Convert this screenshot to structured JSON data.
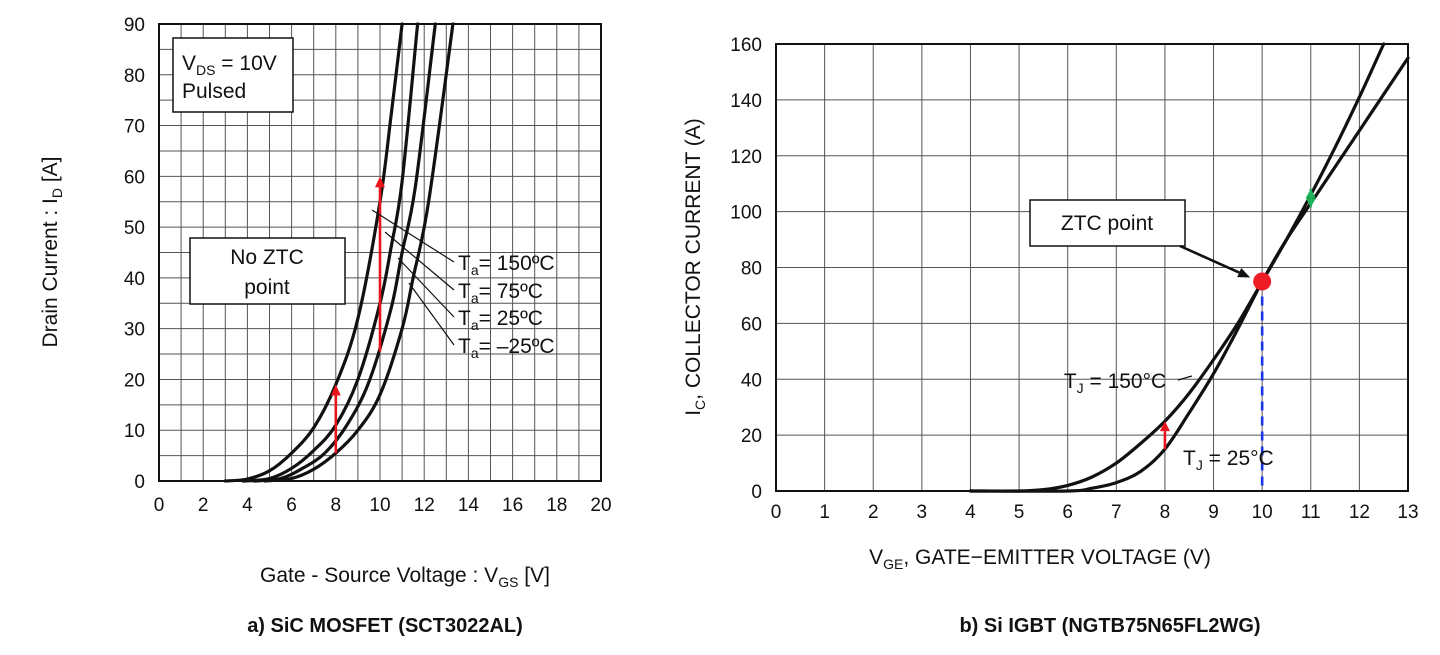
{
  "chart_data": [
    {
      "type": "line",
      "caption": "a) SiC MOSFET (SCT3022AL)",
      "xlabel": {
        "main": "Gate - Source Voltage : V",
        "sub": "GS",
        "unit": " [V]"
      },
      "ylabel": {
        "main": "Drain Current : I",
        "sub": "D",
        "unit": " [A]"
      },
      "xlim": [
        0,
        20
      ],
      "ylim": [
        0,
        90
      ],
      "x_ticks": [
        "0",
        "2",
        "4",
        "6",
        "8",
        "10",
        "12",
        "14",
        "16",
        "18",
        "20"
      ],
      "y_ticks": [
        "0",
        "10",
        "20",
        "30",
        "40",
        "50",
        "60",
        "70",
        "80",
        "90"
      ],
      "grid": true,
      "conditions": {
        "line1_main": "V",
        "line1_sub": "DS",
        "line1_rest": " = 10V",
        "line2": "Pulsed"
      },
      "annotation": {
        "line1": "No ZTC",
        "line2": "point"
      },
      "series": [
        {
          "name": "150ºC",
          "x": [
            3.0,
            4.0,
            5.0,
            6.0,
            7.0,
            8.0,
            9.0,
            10.0,
            10.5,
            11.0
          ],
          "y": [
            0,
            0.4,
            2,
            5.5,
            10.5,
            19,
            32,
            55,
            72,
            90
          ]
        },
        {
          "name": "75ºC",
          "x": [
            3.8,
            5.0,
            6.0,
            7.0,
            8.0,
            9.0,
            10.0,
            10.5,
            11.0,
            11.7
          ],
          "y": [
            0,
            0.5,
            2.5,
            6,
            11,
            20,
            35,
            46,
            59,
            90
          ]
        },
        {
          "name": "25ºC",
          "x": [
            4.3,
            5.5,
            6.5,
            7.5,
            8.5,
            9.5,
            10.5,
            11.0,
            11.6,
            12.5
          ],
          "y": [
            0,
            0.5,
            2.5,
            5.5,
            11,
            19.5,
            34,
            45,
            58,
            90
          ]
        },
        {
          "name": "–25ºC",
          "x": [
            4.8,
            6.0,
            7.0,
            8.0,
            9.0,
            10.0,
            11.0,
            11.5,
            12.2,
            13.3
          ],
          "y": [
            0,
            0.5,
            2.3,
            5.5,
            10,
            17,
            30,
            40,
            55,
            90
          ]
        }
      ],
      "legend_labels": [
        {
          "t": "T",
          "s": "a",
          "v": "= 150ºC"
        },
        {
          "t": "T",
          "s": "a",
          "v": "= 75ºC"
        },
        {
          "t": "T",
          "s": "a",
          "v": "= 25ºC"
        },
        {
          "t": "T",
          "s": "a",
          "v": "= –25ºC"
        }
      ],
      "arrows": [
        {
          "x": 8,
          "y_from": 5.5,
          "y_to": 19,
          "color": "#e8141b"
        },
        {
          "x": 10,
          "y_from": 25.5,
          "y_to": 60,
          "color": "#e8141b"
        }
      ]
    },
    {
      "type": "line",
      "caption": "b) Si IGBT (NGTB75N65FL2WG)",
      "xlabel": {
        "main": "V",
        "sub": "GE",
        "unit": ", GATE−EMITTER VOLTAGE (V)"
      },
      "ylabel": {
        "main": "I",
        "sub": "C",
        "unit": ", COLLECTOR CURRENT (A)"
      },
      "xlim": [
        0,
        13
      ],
      "ylim": [
        0,
        160
      ],
      "x_ticks": [
        "0",
        "1",
        "2",
        "3",
        "4",
        "5",
        "6",
        "7",
        "8",
        "9",
        "10",
        "11",
        "12",
        "13"
      ],
      "y_ticks": [
        "0",
        "20",
        "40",
        "60",
        "80",
        "100",
        "120",
        "140",
        "160"
      ],
      "grid": true,
      "annotation": {
        "text": "ZTC point"
      },
      "ztc_point": {
        "x": 10,
        "y": 75,
        "color": "#ee1c24",
        "line_color": "#1a35e8"
      },
      "series": [
        {
          "name": "150°C",
          "x": [
            4.0,
            5.0,
            5.5,
            6.0,
            6.5,
            7.0,
            7.5,
            8.0,
            8.5,
            9.0,
            9.5,
            10.0,
            10.5,
            11.0,
            11.5,
            12.0,
            12.5
          ],
          "y": [
            0,
            0,
            0.5,
            2,
            5,
            10,
            17,
            25,
            35,
            47,
            60,
            75,
            90,
            106,
            123,
            141,
            160
          ]
        },
        {
          "name": "25°C",
          "x": [
            4.0,
            6.0,
            6.5,
            7.0,
            7.5,
            8.0,
            8.5,
            9.0,
            9.5,
            10.0,
            10.5,
            11.0,
            11.5,
            12.0,
            12.5,
            13.0
          ],
          "y": [
            0,
            0,
            1,
            3,
            7,
            15,
            28,
            42,
            58,
            75,
            90,
            103,
            116,
            129,
            142,
            155
          ]
        }
      ],
      "series_labels": [
        {
          "t": "T",
          "s": "J",
          "v": " = 150°C"
        },
        {
          "t": "T",
          "s": "J",
          "v": " = 25°C"
        }
      ],
      "arrows": [
        {
          "x": 8,
          "y_from": 15,
          "y_to": 25,
          "color": "#e8141b"
        },
        {
          "x": 11,
          "y_from": 106,
          "y_to": 103,
          "color": "#1db35b"
        }
      ]
    }
  ]
}
